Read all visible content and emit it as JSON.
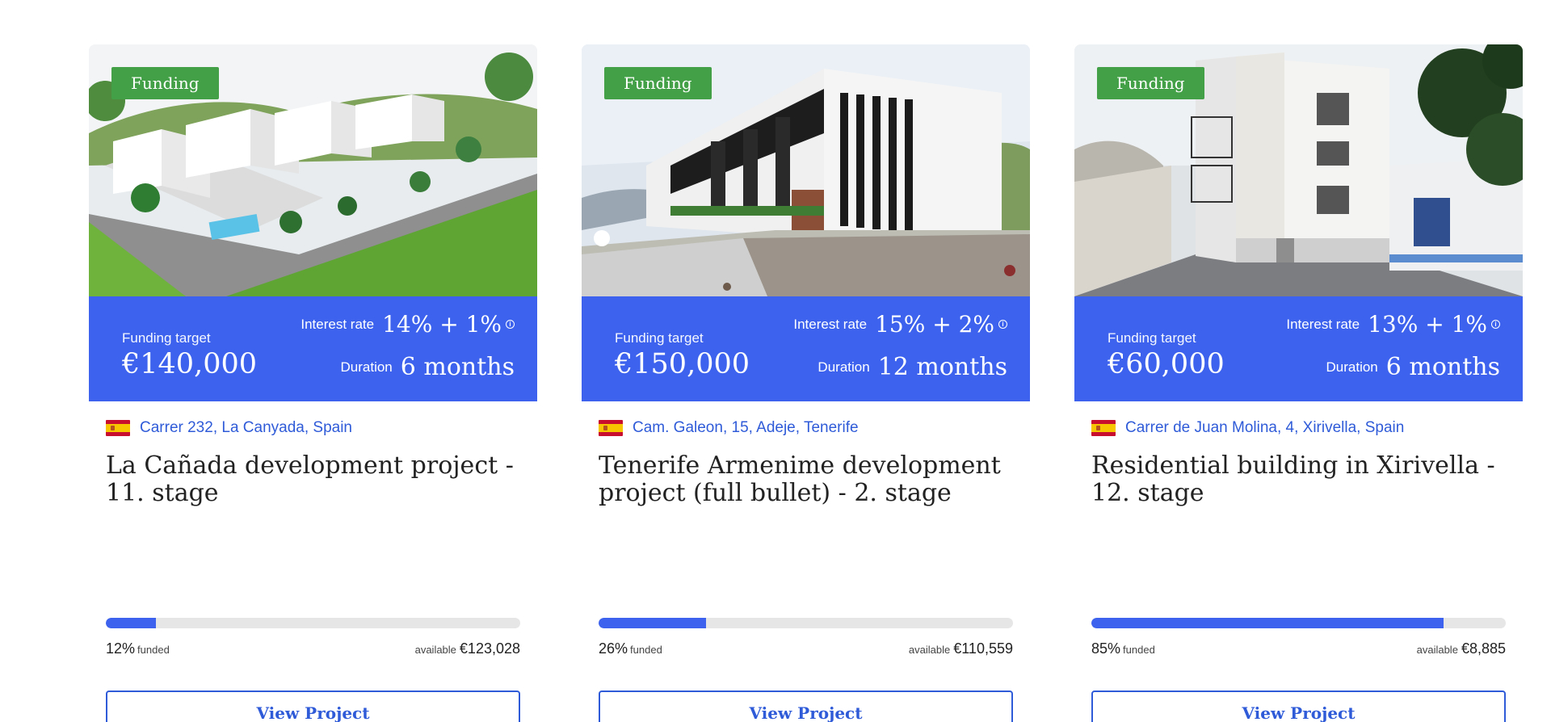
{
  "projects": [
    {
      "badge": "Funding",
      "funding_target_label": "Funding target",
      "funding_target": "€140,000",
      "interest_rate_label": "Interest rate",
      "interest_rate": "14% + 1%",
      "duration_label": "Duration",
      "duration": "6 months",
      "location": "Carrer 232, La Canyada, Spain",
      "title": "La Cañada development project - 11. stage",
      "funded_pct": "12%",
      "funded_fraction": 0.12,
      "funded_label": "funded",
      "available_label": "available",
      "available": "€123,028",
      "button": "View Project"
    },
    {
      "badge": "Funding",
      "funding_target_label": "Funding target",
      "funding_target": "€150,000",
      "interest_rate_label": "Interest rate",
      "interest_rate": "15% + 2%",
      "duration_label": "Duration",
      "duration": "12 months",
      "location": "Cam. Galeon, 15, Adeje, Tenerife",
      "title": "Tenerife Armenime development project (full bullet) - 2. stage",
      "funded_pct": "26%",
      "funded_fraction": 0.26,
      "funded_label": "funded",
      "available_label": "available",
      "available": "€110,559",
      "button": "View Project"
    },
    {
      "badge": "Funding",
      "funding_target_label": "Funding target",
      "funding_target": "€60,000",
      "interest_rate_label": "Interest rate",
      "interest_rate": "13% + 1%",
      "duration_label": "Duration",
      "duration": "6 months",
      "location": "Carrer de Juan Molina, 4, Xirivella, Spain",
      "title": "Residential building in Xirivella - 12. stage",
      "funded_pct": "85%",
      "funded_fraction": 0.85,
      "funded_label": "funded",
      "available_label": "available",
      "available": "€8,885",
      "button": "View Project"
    }
  ],
  "colors": {
    "accent": "#3d63ee",
    "badge": "#43a047",
    "link": "#2f5bd8"
  },
  "icons": {
    "info": "info-circle-icon",
    "flag": "spain-flag-icon"
  }
}
